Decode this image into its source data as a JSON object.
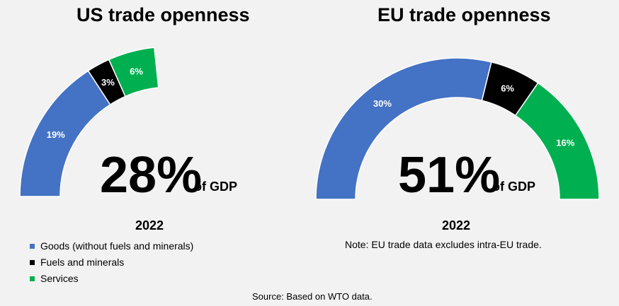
{
  "colors": {
    "goods": "#4472c4",
    "fuels": "#000000",
    "services": "#00b050",
    "segment_label_light": "#ffffff",
    "segment_label_dark": "#000000"
  },
  "legend": [
    {
      "label": "Goods (without fuels and minerals)",
      "color": "#4472c4"
    },
    {
      "label": "Fuels and minerals",
      "color": "#000000"
    },
    {
      "label": "Services",
      "color": "#00b050"
    }
  ],
  "source": "Source: Based on WTO data.",
  "chart_data": [
    {
      "type": "gauge",
      "title": "US trade openness",
      "total_label": "28%",
      "total_unit": "of GDP",
      "year": "2022",
      "scale_max": 60,
      "series": [
        {
          "name": "Goods (without fuels and minerals)",
          "value": 19,
          "label": "19%",
          "color": "#4472c4"
        },
        {
          "name": "Fuels and minerals",
          "value": 3,
          "label": "3%",
          "color": "#000000"
        },
        {
          "name": "Services",
          "value": 6,
          "label": "6%",
          "color": "#00b050"
        }
      ]
    },
    {
      "type": "gauge",
      "title": "EU trade openness",
      "total_label": "51%",
      "total_unit": "of GDP",
      "year": "2022",
      "note": "Note: EU trade data excludes intra-EU trade.",
      "scale_max": 52,
      "series": [
        {
          "name": "Goods (without fuels and minerals)",
          "value": 30,
          "label": "30%",
          "color": "#4472c4"
        },
        {
          "name": "Fuels and minerals",
          "value": 6,
          "label": "6%",
          "color": "#000000"
        },
        {
          "name": "Services",
          "value": 16,
          "label": "16%",
          "color": "#00b050"
        }
      ]
    }
  ]
}
